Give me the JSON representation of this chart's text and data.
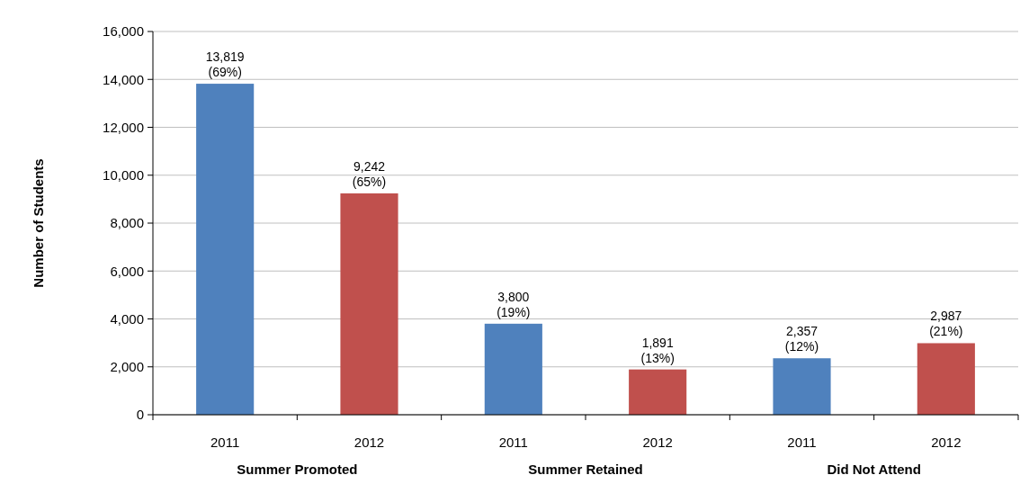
{
  "chart_data": {
    "type": "bar",
    "ylabel": "Number of Students",
    "categories": [
      "2011",
      "2012",
      "2011",
      "2012",
      "2011",
      "2012"
    ],
    "values": [
      13819,
      9242,
      3800,
      1891,
      2357,
      2987
    ],
    "colors": [
      "#4f81bd",
      "#c0504d",
      "#4f81bd",
      "#c0504d",
      "#4f81bd",
      "#c0504d"
    ],
    "value_labels": [
      "13,819\n(69%)",
      "9,242\n(65%)",
      "3,800\n(19%)",
      "1,891\n(13%)",
      "2,357\n(12%)",
      "2,987\n(21%)"
    ],
    "annotations": [
      "Summer Promoted",
      "Summer Retained",
      "Did Not Attend"
    ],
    "ylim": [
      0,
      16000
    ],
    "yticks": [
      {
        "value": 0,
        "label": "0"
      },
      {
        "value": 2000,
        "label": "2,000"
      },
      {
        "value": 4000,
        "label": "4,000"
      },
      {
        "value": 6000,
        "label": "6,000"
      },
      {
        "value": 8000,
        "label": "8,000"
      },
      {
        "value": 10000,
        "label": "10,000"
      },
      {
        "value": 12000,
        "label": "12,000"
      },
      {
        "value": 14000,
        "label": "14,000"
      },
      {
        "value": 16000,
        "label": "16,000"
      }
    ],
    "grid": "y"
  }
}
